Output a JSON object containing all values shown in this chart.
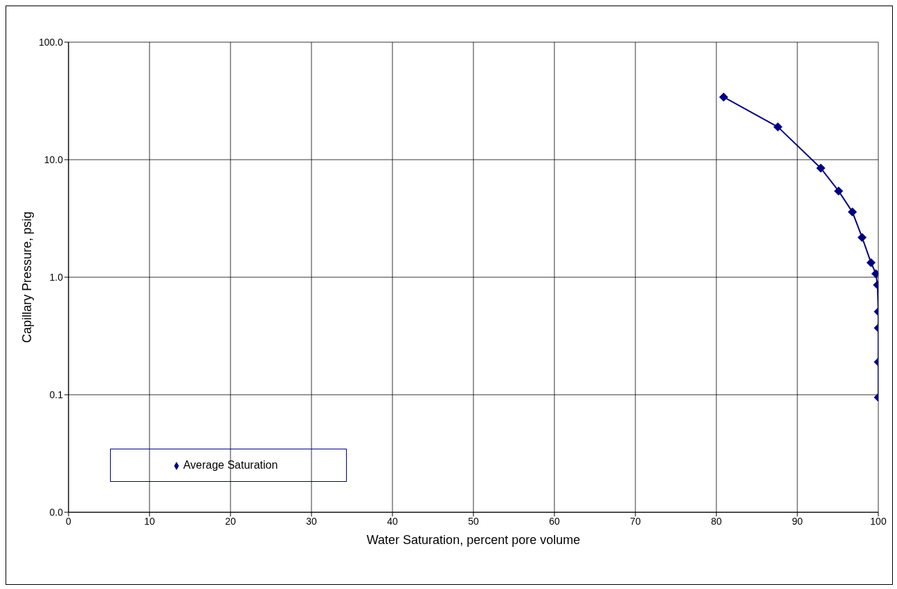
{
  "chart_data": {
    "type": "line",
    "xlabel": "Water Saturation, percent pore volume",
    "ylabel": "Capillary Pressure, psig",
    "x": [
      80.9,
      87.6,
      92.9,
      95.1,
      96.8,
      98.0,
      99.1,
      99.7,
      99.9,
      100,
      100,
      100,
      100
    ],
    "series": [
      {
        "name": "Average Saturation",
        "color": "#000080",
        "values": [
          34.1,
          19.0,
          8.47,
          5.41,
          3.59,
          2.18,
          1.33,
          1.07,
          0.86,
          0.51,
          0.37,
          0.19,
          0.095
        ]
      }
    ],
    "xlim": [
      0,
      100
    ],
    "xticks": [
      0,
      10,
      20,
      30,
      40,
      50,
      60,
      70,
      80,
      90,
      100
    ],
    "ylim": [
      0.01,
      100
    ],
    "yticks": [
      {
        "value": 0.01,
        "label": "0.0"
      },
      {
        "value": 0.1,
        "label": "0.1"
      },
      {
        "value": 1,
        "label": "1.0"
      },
      {
        "value": 10,
        "label": "10.0"
      },
      {
        "value": 100,
        "label": "100.0"
      }
    ],
    "log": "y",
    "grid": true,
    "legend": "bottom left",
    "marker": "diamond",
    "line_style": "solid"
  }
}
